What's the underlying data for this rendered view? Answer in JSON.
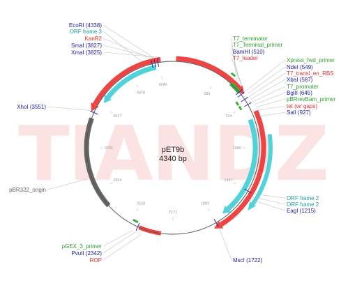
{
  "plasmid": {
    "name": "pET9b",
    "size": "4340 bp",
    "watermark": "TIANDZ"
  },
  "tick_labels": [
    "383",
    "724",
    "1086",
    "1447",
    "1809",
    "2171",
    "2533",
    "2894",
    "3255",
    "3617",
    "3978",
    "4240"
  ],
  "colors": {
    "red": "#ef4444",
    "cyan": "#4dd3d9",
    "green": "#3faf3f",
    "gray": "#666666",
    "blue_text": "#1c1c9c",
    "red_text": "#e03030",
    "green_text": "#2f9f2f",
    "teal_text": "#1a9a9a",
    "leader": "#c0c0c0"
  },
  "labels": {
    "left": [
      {
        "text": "EcoRI (4338)",
        "color": "blue_text"
      },
      {
        "text": "ORF frame 3",
        "color": "teal_text"
      },
      {
        "text": "KanR2",
        "color": "red_text"
      },
      {
        "text": "SmaI (3827)",
        "color": "blue_text"
      },
      {
        "text": "XmaI (3825)",
        "color": "blue_text"
      },
      {
        "text": "XhoI (3551)",
        "color": "blue_text"
      },
      {
        "text": "pBR322_origin",
        "color": "gray"
      },
      {
        "text": "pGEX_3_primer",
        "color": "green_text"
      },
      {
        "text": "PvuII (2342)",
        "color": "blue_text"
      },
      {
        "text": "ROP",
        "color": "red_text"
      }
    ],
    "right": [
      {
        "text": "T7_terminator",
        "color": "green_text"
      },
      {
        "text": "T7_Terminal_primer",
        "color": "green_text"
      },
      {
        "text": "BamHI (510)",
        "color": "blue_text"
      },
      {
        "text": "T7_leader",
        "color": "red_text"
      },
      {
        "text": "Xpress_fwd_primer",
        "color": "green_text"
      },
      {
        "text": "NdeI (549)",
        "color": "blue_text"
      },
      {
        "text": "T7_transl_en_RBS",
        "color": "red_text"
      },
      {
        "text": "XbaI (587)",
        "color": "blue_text"
      },
      {
        "text": "T7_promoter",
        "color": "green_text"
      },
      {
        "text": "BglII (645)",
        "color": "blue_text"
      },
      {
        "text": "pBRrevBam_primer",
        "color": "green_text"
      },
      {
        "text": "tet (w/ gaps)",
        "color": "red_text"
      },
      {
        "text": "SalI (927)",
        "color": "blue_text"
      },
      {
        "text": "ORF frame 2",
        "color": "teal_text"
      },
      {
        "text": "ORF frame 2",
        "color": "teal_text"
      },
      {
        "text": "EagI (1215)",
        "color": "blue_text"
      },
      {
        "text": "MscI (1722)",
        "color": "blue_text"
      }
    ]
  }
}
